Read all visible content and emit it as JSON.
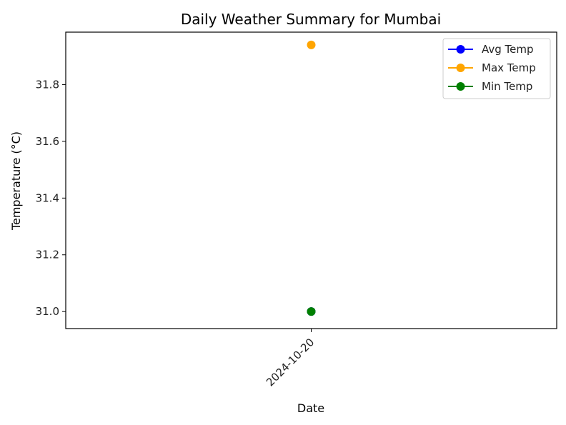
{
  "chart_data": {
    "type": "line",
    "title": "Daily Weather Summary for Mumbai",
    "xlabel": "Date",
    "ylabel": "Temperature (°C)",
    "categories": [
      "2024-10-20"
    ],
    "ylim": [
      30.94,
      31.985
    ],
    "yticks": [
      31.0,
      31.2,
      31.4,
      31.6,
      31.8
    ],
    "ytick_labels": [
      "31.0",
      "31.2",
      "31.4",
      "31.6",
      "31.8"
    ],
    "grid": false,
    "legend_position": "top-right",
    "series": [
      {
        "name": "Avg Temp",
        "color": "#0000ff",
        "values": [
          31.0
        ],
        "marker": "circle"
      },
      {
        "name": "Max Temp",
        "color": "#ffa500",
        "values": [
          31.94
        ],
        "marker": "circle"
      },
      {
        "name": "Min Temp",
        "color": "#008000",
        "values": [
          31.0
        ],
        "marker": "circle"
      }
    ]
  }
}
